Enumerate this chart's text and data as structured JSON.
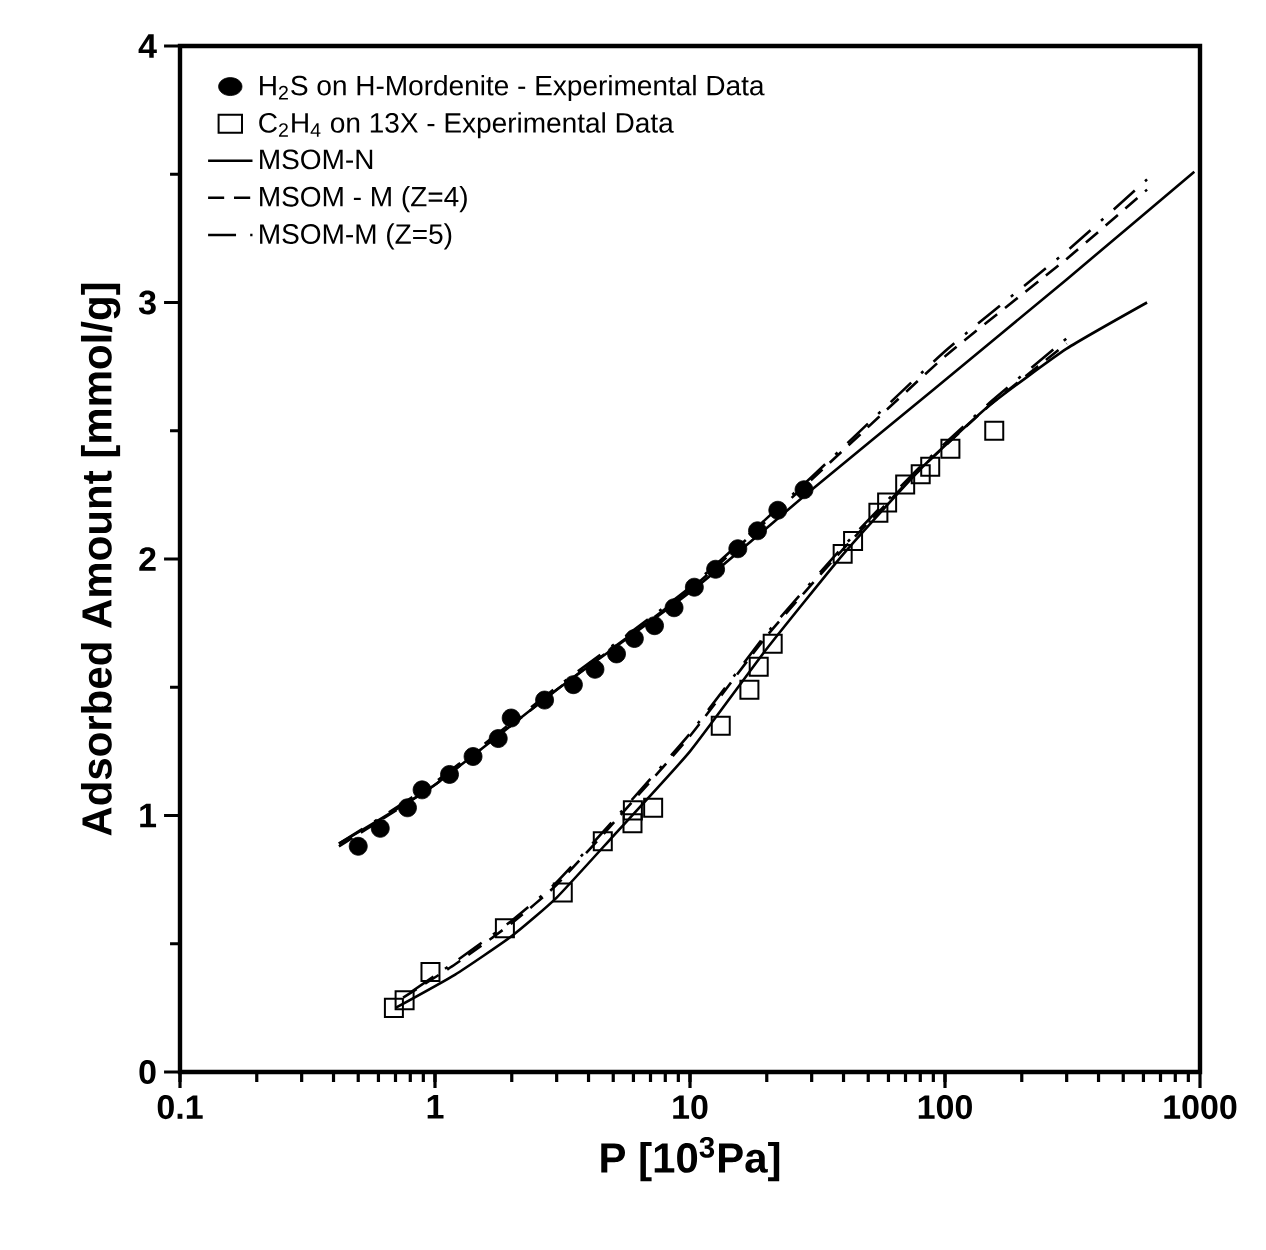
{
  "chart_data": {
    "type": "line",
    "xlabel": "P  [10$^{3}$Pa]",
    "ylabel": "Adsorbed Amount [mmol/g]",
    "log": "x",
    "xlim": [
      0.1,
      1000
    ],
    "ylim": [
      0,
      4
    ],
    "xticks": [
      0.1,
      1,
      10,
      100,
      1000
    ],
    "yticks": [
      0,
      1,
      2,
      3,
      4
    ],
    "grid": false,
    "legend": "top left",
    "series": [
      {
        "name": "H$_{2}$S on H-Mordenite - Experimental Data",
        "type": "scatter",
        "marker": "circle",
        "color": "#000000",
        "x": [
          0.5,
          0.61,
          0.78,
          0.89,
          1.14,
          1.41,
          1.77,
          1.99,
          2.69,
          3.49,
          4.24,
          5.15,
          6.05,
          7.26,
          8.66,
          10.4,
          12.6,
          15.4,
          18.4,
          22.1,
          28
        ],
        "values": [
          0.88,
          0.95,
          1.03,
          1.1,
          1.16,
          1.23,
          1.3,
          1.38,
          1.45,
          1.51,
          1.57,
          1.63,
          1.69,
          1.74,
          1.81,
          1.89,
          1.96,
          2.04,
          2.11,
          2.19,
          2.27
        ]
      },
      {
        "name": "C$_{2}$H$_{4}$ on 13X - Experimental Data",
        "type": "scatter",
        "marker": "square",
        "color": "#000000",
        "x": [
          0.69,
          0.76,
          0.96,
          1.88,
          3.17,
          4.55,
          5.95,
          5.97,
          7.17,
          13.2,
          17.1,
          18.6,
          21.1,
          39.7,
          43.6,
          54.8,
          59.3,
          69.8,
          80.3,
          87.5,
          105,
          156
        ],
        "values": [
          0.25,
          0.28,
          0.39,
          0.56,
          0.7,
          0.9,
          0.97,
          1.02,
          1.03,
          1.35,
          1.49,
          1.58,
          1.67,
          2.02,
          2.07,
          2.18,
          2.22,
          2.29,
          2.33,
          2.36,
          2.43,
          2.5
        ]
      },
      {
        "name": "MSOM-N",
        "line_style": "solid",
        "color": "#000000",
        "x": [
          0.42,
          1,
          3,
          10,
          30,
          90,
          300,
          950
        ],
        "values": [
          0.89,
          1.12,
          1.49,
          1.87,
          2.27,
          2.66,
          3.09,
          3.51
        ]
      },
      {
        "name": "MSOM - M (Z=4)",
        "line_style": "dashed",
        "color": "#000000",
        "x": [
          0.42,
          1,
          3,
          10,
          30,
          100,
          300,
          620
        ],
        "values": [
          0.88,
          1.12,
          1.49,
          1.88,
          2.31,
          2.79,
          3.17,
          3.44
        ]
      },
      {
        "name": "MSOM-M (Z=5)",
        "line_style": "dashdot",
        "color": "#000000",
        "x": [
          0.42,
          1,
          3,
          10,
          30,
          100,
          300,
          620
        ],
        "values": [
          0.89,
          1.13,
          1.5,
          1.89,
          2.32,
          2.81,
          3.2,
          3.48
        ]
      },
      {
        "line_style": "solid",
        "color": "#000000",
        "x": [
          0.7,
          1.2,
          2,
          3,
          5,
          10,
          20,
          40,
          80,
          150,
          300,
          620
        ],
        "values": [
          0.25,
          0.38,
          0.53,
          0.68,
          0.92,
          1.25,
          1.65,
          2.02,
          2.35,
          2.6,
          2.82,
          3.0
        ]
      },
      {
        "line_style": "dashed",
        "color": "#000000",
        "x": [
          0.75,
          1.2,
          2,
          3,
          5,
          10,
          20,
          40,
          80,
          150,
          300
        ],
        "values": [
          0.29,
          0.42,
          0.58,
          0.73,
          0.97,
          1.31,
          1.7,
          2.04,
          2.35,
          2.6,
          2.84
        ]
      },
      {
        "line_style": "dashdot",
        "color": "#000000",
        "x": [
          0.8,
          1.2,
          2,
          3,
          5,
          10,
          20,
          40,
          80,
          150,
          300
        ],
        "values": [
          0.31,
          0.43,
          0.59,
          0.74,
          0.98,
          1.32,
          1.71,
          2.05,
          2.36,
          2.61,
          2.86
        ]
      }
    ]
  }
}
